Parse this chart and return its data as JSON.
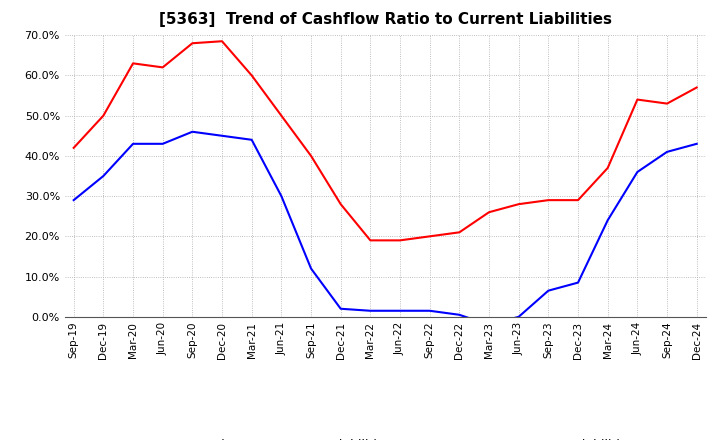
{
  "title": "[5363]  Trend of Cashflow Ratio to Current Liabilities",
  "x_labels": [
    "Sep-19",
    "Dec-19",
    "Mar-20",
    "Jun-20",
    "Sep-20",
    "Dec-20",
    "Mar-21",
    "Jun-21",
    "Sep-21",
    "Dec-21",
    "Mar-22",
    "Jun-22",
    "Sep-22",
    "Dec-22",
    "Mar-23",
    "Jun-23",
    "Sep-23",
    "Dec-23",
    "Mar-24",
    "Jun-24",
    "Sep-24",
    "Dec-24"
  ],
  "operating_cf": [
    0.42,
    0.5,
    0.63,
    0.62,
    0.68,
    0.685,
    0.6,
    0.5,
    0.4,
    0.28,
    0.19,
    0.19,
    0.2,
    0.21,
    0.26,
    0.28,
    0.29,
    0.29,
    0.37,
    0.54,
    0.53,
    0.57
  ],
  "free_cf": [
    0.29,
    0.35,
    0.43,
    0.43,
    0.46,
    0.45,
    0.44,
    0.3,
    0.12,
    0.02,
    0.015,
    0.015,
    0.015,
    0.005,
    -0.02,
    0.0,
    0.065,
    0.085,
    0.24,
    0.36,
    0.41,
    0.43
  ],
  "operating_color": "#ff0000",
  "free_color": "#0000ff",
  "ylim": [
    0.0,
    0.7
  ],
  "yticks": [
    0.0,
    0.1,
    0.2,
    0.3,
    0.4,
    0.5,
    0.6,
    0.7
  ],
  "background_color": "#ffffff",
  "grid_color": "#aaaaaa",
  "title_fontsize": 11,
  "legend_labels": [
    "Operating CF to Current Liabilities",
    "Free CF to Current Liabilities"
  ]
}
